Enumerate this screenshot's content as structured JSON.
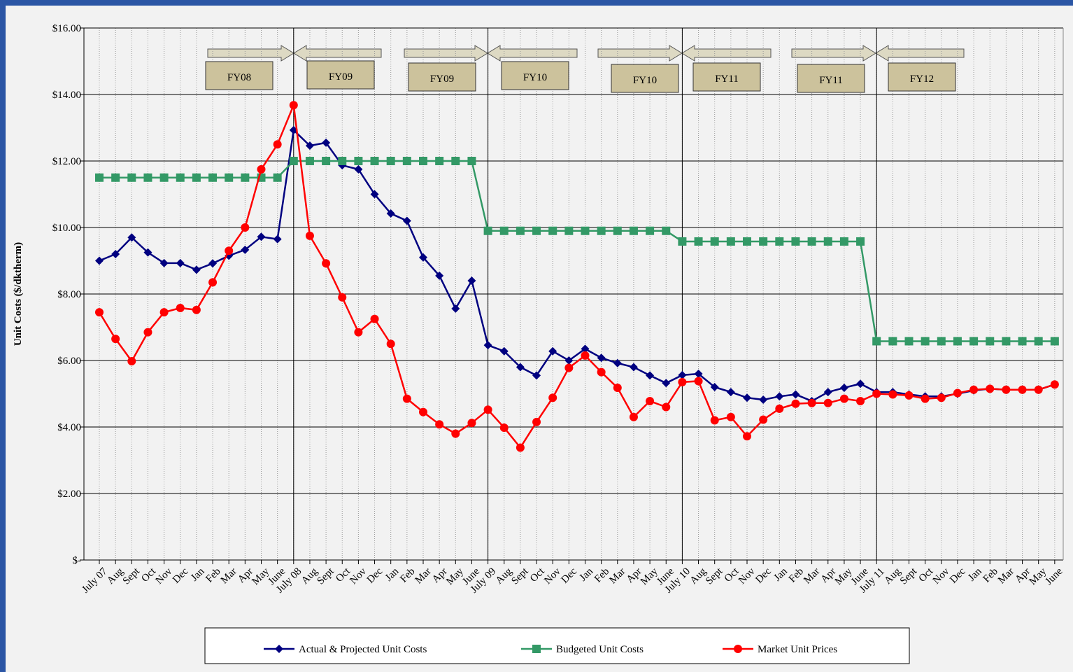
{
  "chart_data": {
    "type": "line",
    "y_label": "Unit Costs ($/dktherm)",
    "categories": [
      "July 07",
      "Aug",
      "Sept",
      "Oct",
      "Nov",
      "Dec",
      "Jan",
      "Feb",
      "Mar",
      "Apr",
      "May",
      "June",
      "July 08",
      "Aug",
      "Sept",
      "Oct",
      "Nov",
      "Dec",
      "Jan",
      "Feb",
      "Mar",
      "Apr",
      "May",
      "June",
      "July 09",
      "Aug",
      "Sept",
      "Oct",
      "Nov",
      "Dec",
      "Jan",
      "Feb",
      "Mar",
      "Apr",
      "May",
      "June",
      "July 10",
      "Aug",
      "Sept",
      "Oct",
      "Nov",
      "Dec",
      "Jan",
      "Feb",
      "Mar",
      "Apr",
      "May",
      "June",
      "July 11",
      "Aug",
      "Sept",
      "Oct",
      "Nov",
      "Dec",
      "Jan",
      "Feb",
      "Mar",
      "Apr",
      "May",
      "June"
    ],
    "series": [
      {
        "name": "Actual & Projected Unit Costs",
        "color": "#000080",
        "marker": "diamond",
        "values": [
          9.0,
          9.2,
          9.7,
          9.25,
          8.93,
          8.93,
          8.73,
          8.92,
          9.15,
          9.33,
          9.72,
          9.65,
          12.93,
          12.46,
          12.55,
          11.87,
          11.75,
          11.0,
          10.42,
          10.2,
          9.1,
          8.55,
          7.56,
          8.4,
          6.46,
          6.28,
          5.8,
          5.55,
          6.28,
          6.0,
          6.35,
          6.08,
          5.92,
          5.8,
          5.55,
          5.32,
          5.56,
          5.6,
          5.2,
          5.05,
          4.88,
          4.82,
          4.92,
          4.98,
          4.78,
          5.05,
          5.18,
          5.3,
          5.05,
          5.05,
          4.98,
          4.92,
          4.92,
          5.0,
          5.1,
          5.15,
          5.12,
          5.12,
          5.12,
          5.28
        ]
      },
      {
        "name": "Budgeted Unit Costs",
        "color": "#339966",
        "marker": "square",
        "values": [
          11.5,
          11.5,
          11.5,
          11.5,
          11.5,
          11.5,
          11.5,
          11.5,
          11.5,
          11.5,
          11.5,
          11.5,
          12.0,
          12.0,
          12.0,
          12.0,
          12.0,
          12.0,
          12.0,
          12.0,
          12.0,
          12.0,
          12.0,
          12.0,
          9.9,
          9.9,
          9.9,
          9.9,
          9.9,
          9.9,
          9.9,
          9.9,
          9.9,
          9.9,
          9.9,
          9.9,
          9.58,
          9.58,
          9.58,
          9.58,
          9.58,
          9.58,
          9.58,
          9.58,
          9.58,
          9.58,
          9.58,
          9.58,
          6.58,
          6.58,
          6.58,
          6.58,
          6.58,
          6.58,
          6.58,
          6.58,
          6.58,
          6.58,
          6.58,
          6.58
        ]
      },
      {
        "name": "Market Unit Prices",
        "color": "#ff0000",
        "marker": "circle",
        "values": [
          7.45,
          6.65,
          5.98,
          6.85,
          7.45,
          7.58,
          7.52,
          8.35,
          9.3,
          10.0,
          11.75,
          12.5,
          13.68,
          9.75,
          8.92,
          7.9,
          6.85,
          7.25,
          6.5,
          4.85,
          4.45,
          4.08,
          3.8,
          4.12,
          4.52,
          3.98,
          3.38,
          4.15,
          4.88,
          5.78,
          6.15,
          5.65,
          5.18,
          4.3,
          4.78,
          4.6,
          5.35,
          5.38,
          4.2,
          4.3,
          3.72,
          4.22,
          4.55,
          4.7,
          4.72,
          4.72,
          4.85,
          4.78,
          5.0,
          4.98,
          4.95,
          4.85,
          4.88,
          5.02,
          5.12,
          5.15,
          5.12,
          5.12,
          5.12,
          5.28
        ]
      }
    ],
    "ylim": [
      0,
      16
    ],
    "yticks": [
      {
        "value": 0,
        "label": "$-"
      },
      {
        "value": 2,
        "label": "$2.00"
      },
      {
        "value": 4,
        "label": "$4.00"
      },
      {
        "value": 6,
        "label": "$6.00"
      },
      {
        "value": 8,
        "label": "$8.00"
      },
      {
        "value": 10,
        "label": "$10.00"
      },
      {
        "value": 12,
        "label": "$12.00"
      },
      {
        "value": 14,
        "label": "$14.00"
      },
      {
        "value": 16,
        "label": "$16.00"
      }
    ],
    "grid": true,
    "legend": "bottom",
    "annotations": [
      "FY08",
      "FY09",
      "FY09",
      "FY10",
      "FY10",
      "FY11",
      "FY11",
      "FY12"
    ]
  }
}
